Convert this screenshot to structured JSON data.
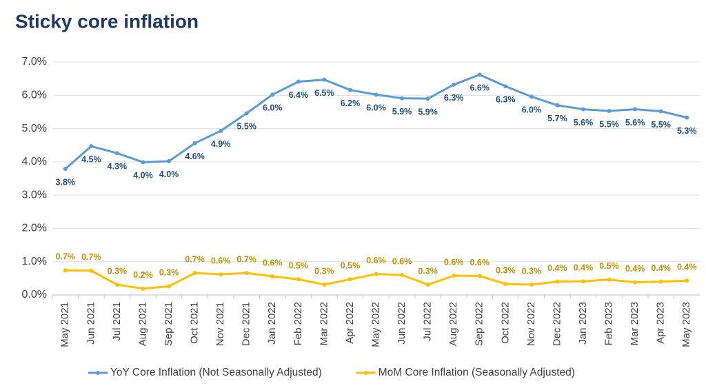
{
  "chart_data": {
    "type": "line",
    "title": "Sticky core inflation",
    "categories": [
      "May 2021",
      "Jun 2021",
      "Jul 2021",
      "Aug 2021",
      "Sep 2021",
      "Oct 2021",
      "Nov 2021",
      "Dec 2021",
      "Jan 2022",
      "Feb 2022",
      "Mar 2022",
      "Apr 2022",
      "May 2022",
      "Jun 2022",
      "Jul 2022",
      "Aug 2022",
      "Sep 2022",
      "Oct 2022",
      "Nov 2022",
      "Dec 2022",
      "Jan 2023",
      "Feb 2023",
      "Mar 2023",
      "Apr 2023",
      "May 2023"
    ],
    "series": [
      {
        "name": "YoY Core Inflation (Not Seasonally Adjusted)",
        "color": "#5b9bd5",
        "label_color": "#1f4e79",
        "values": [
          3.79,
          4.47,
          4.26,
          3.99,
          4.02,
          4.56,
          4.93,
          5.46,
          6.02,
          6.41,
          6.47,
          6.16,
          6.02,
          5.91,
          5.9,
          6.32,
          6.62,
          6.27,
          5.96,
          5.7,
          5.58,
          5.53,
          5.58,
          5.52,
          5.33
        ],
        "value_labels": [
          "3.8%",
          "4.5%",
          "4.3%",
          "4.0%",
          "4.0%",
          "4.6%",
          "4.9%",
          "5.5%",
          "6.0%",
          "6.4%",
          "6.5%",
          "6.2%",
          "6.0%",
          "5.9%",
          "5.9%",
          "6.3%",
          "6.6%",
          "6.3%",
          "6.0%",
          "5.7%",
          "5.6%",
          "5.5%",
          "5.6%",
          "5.5%",
          "5.3%"
        ]
      },
      {
        "name": "MoM Core Inflation (Seasonally Adjusted)",
        "color": "#ffc000",
        "label_color": "#bf9000",
        "values": [
          0.74,
          0.73,
          0.31,
          0.19,
          0.26,
          0.66,
          0.62,
          0.66,
          0.56,
          0.47,
          0.31,
          0.47,
          0.63,
          0.6,
          0.31,
          0.58,
          0.57,
          0.33,
          0.31,
          0.4,
          0.41,
          0.46,
          0.38,
          0.4,
          0.43
        ],
        "value_labels": [
          "0.7%",
          "0.7%",
          "0.3%",
          "0.2%",
          "0.3%",
          "0.7%",
          "0.6%",
          "0.7%",
          "0.6%",
          "0.5%",
          "0.3%",
          "0.5%",
          "0.6%",
          "0.6%",
          "0.3%",
          "0.6%",
          "0.6%",
          "0.3%",
          "0.3%",
          "0.4%",
          "0.4%",
          "0.5%",
          "0.4%",
          "0.4%",
          "0.4%"
        ]
      }
    ],
    "ylim": [
      0,
      7
    ],
    "yticks": [
      {
        "value": 0,
        "label": "0.0%"
      },
      {
        "value": 1,
        "label": "1.0%"
      },
      {
        "value": 2,
        "label": "2.0%"
      },
      {
        "value": 3,
        "label": "3.0%"
      },
      {
        "value": 4,
        "label": "4.0%"
      },
      {
        "value": 5,
        "label": "5.0%"
      },
      {
        "value": 6,
        "label": "6.0%"
      },
      {
        "value": 7,
        "label": "7.0%"
      }
    ],
    "grid": true,
    "legend": "bottom"
  }
}
